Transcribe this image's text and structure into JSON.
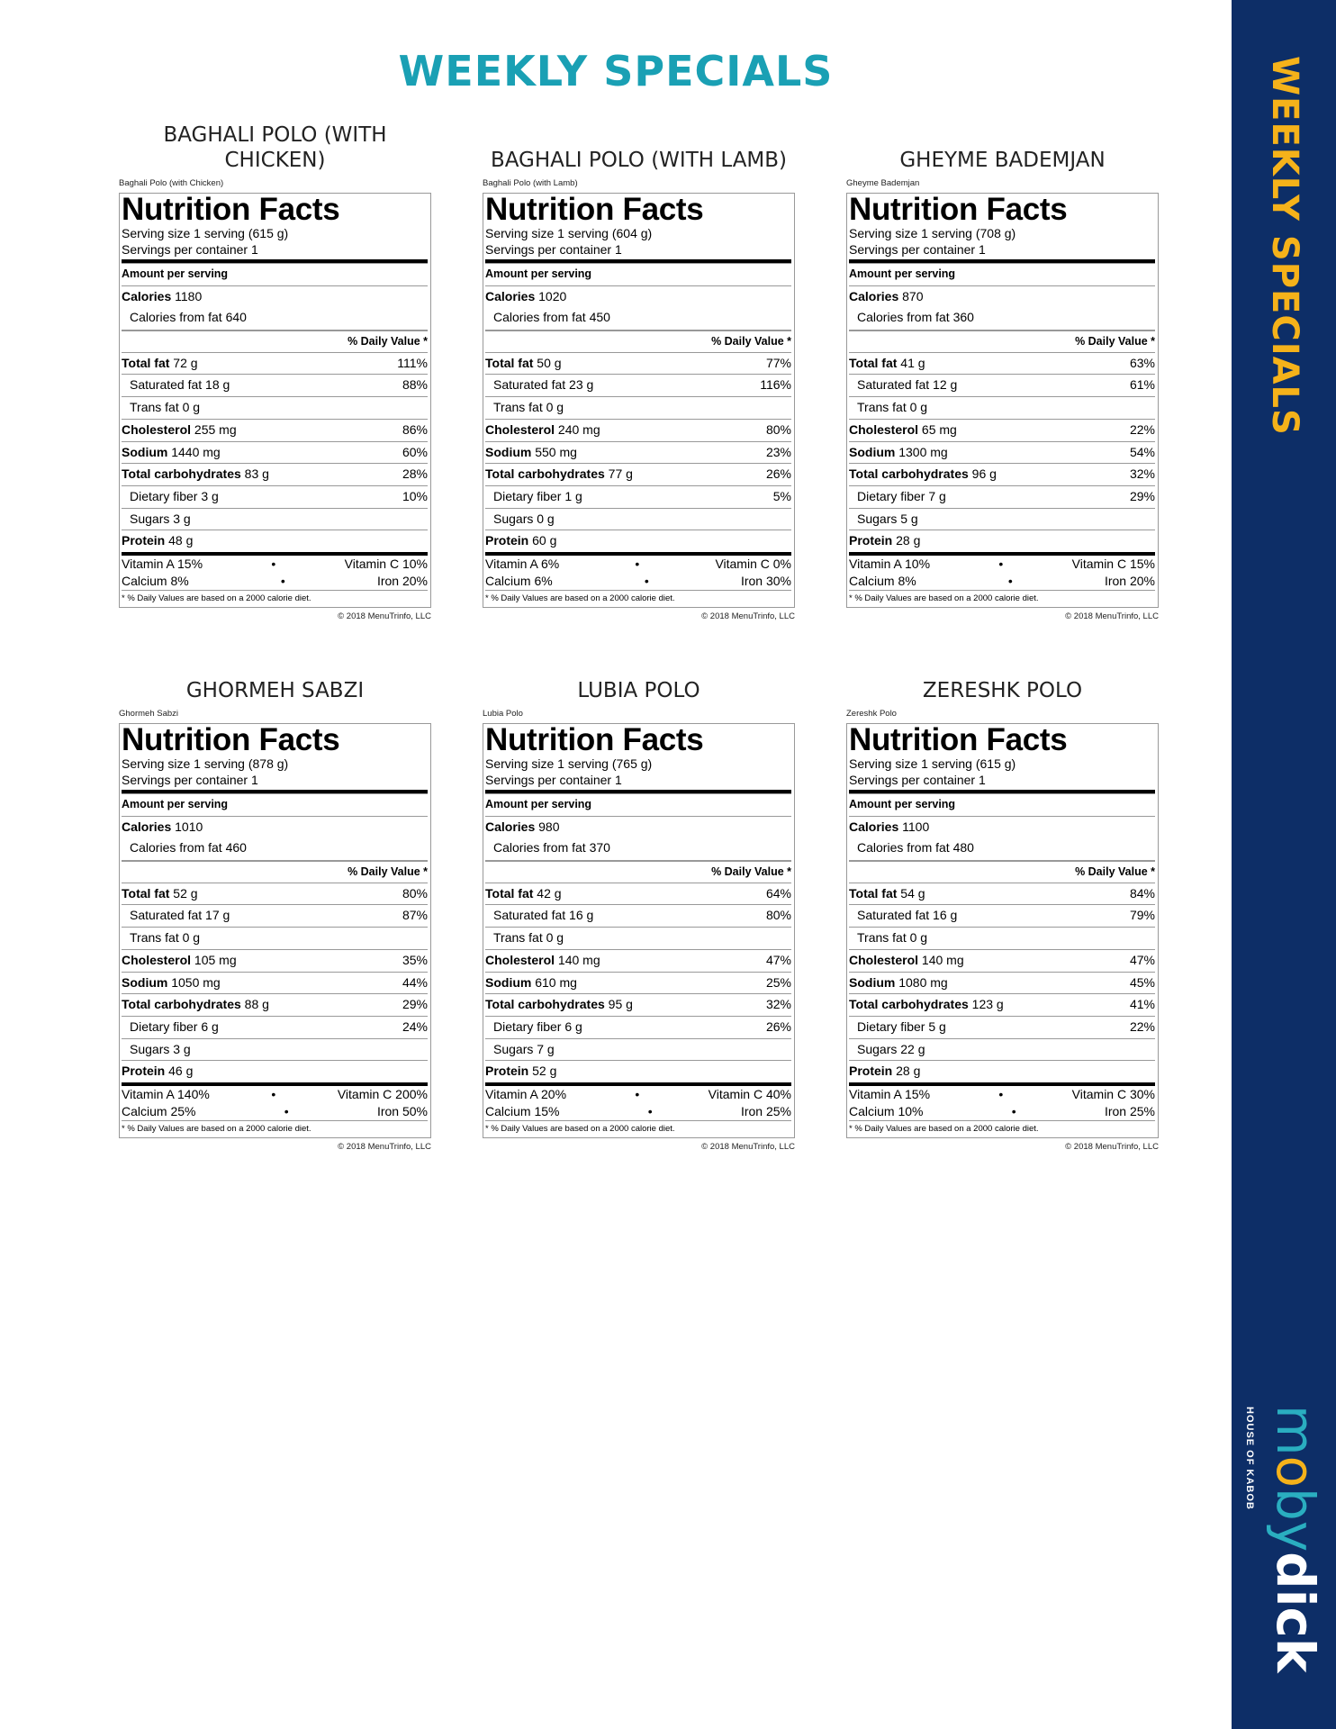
{
  "header": {
    "title": "WEEKLY SPECIALS"
  },
  "sidebar": {
    "title": "WEEKLY SPECIALS",
    "logo_text": "mobydick",
    "logo_tagline": "HOUSE OF KABOB",
    "colors": {
      "background": "#0d2e67",
      "accent": "#f5b21a",
      "teal": "#2aaec0"
    }
  },
  "common": {
    "nf": "Nutrition Facts",
    "spc": "Servings per container 1",
    "aps": "Amount per serving",
    "dv": "% Daily Value *",
    "footnote": "* % Daily Values are based on a 2000 calorie diet.",
    "copyright": "© 2018 MenuTrinfo, LLC",
    "bullet": "•"
  },
  "items": [
    {
      "heading": "BAGHALI POLO (WITH CHICKEN)",
      "small_name": "Baghali Polo (with Chicken)",
      "serving": "Serving size 1 serving (615 g)",
      "calories": "1180",
      "cal_fat": "Calories from fat 640",
      "fat": "72 g",
      "fat_dv": "111%",
      "sat": "Saturated fat 18 g",
      "sat_dv": "88%",
      "trans": "Trans fat 0 g",
      "chol": "255 mg",
      "chol_dv": "86%",
      "sod": "1440 mg",
      "sod_dv": "60%",
      "carb": "83 g",
      "carb_dv": "28%",
      "fiber": "Dietary fiber 3 g",
      "fiber_dv": "10%",
      "sugar": "Sugars 3 g",
      "protein": "48 g",
      "vit_a": "Vitamin A 15%",
      "vit_c": "Vitamin C 10%",
      "calcium": "Calcium 8%",
      "iron": "Iron 20%"
    },
    {
      "heading": "BAGHALI POLO (WITH LAMB)",
      "small_name": "Baghali Polo (with Lamb)",
      "serving": "Serving size 1 serving (604 g)",
      "calories": "1020",
      "cal_fat": "Calories from fat 450",
      "fat": "50 g",
      "fat_dv": "77%",
      "sat": "Saturated fat 23 g",
      "sat_dv": "116%",
      "trans": "Trans fat 0 g",
      "chol": "240 mg",
      "chol_dv": "80%",
      "sod": "550 mg",
      "sod_dv": "23%",
      "carb": "77 g",
      "carb_dv": "26%",
      "fiber": "Dietary fiber 1 g",
      "fiber_dv": "5%",
      "sugar": "Sugars 0 g",
      "protein": "60 g",
      "vit_a": "Vitamin A 6%",
      "vit_c": "Vitamin C 0%",
      "calcium": "Calcium 6%",
      "iron": "Iron 30%"
    },
    {
      "heading": "GHEYME BADEMJAN",
      "small_name": "Gheyme Bademjan",
      "serving": "Serving size 1 serving (708 g)",
      "calories": "870",
      "cal_fat": "Calories from fat 360",
      "fat": "41 g",
      "fat_dv": "63%",
      "sat": "Saturated fat 12 g",
      "sat_dv": "61%",
      "trans": "Trans fat 0 g",
      "chol": "65 mg",
      "chol_dv": "22%",
      "sod": "1300 mg",
      "sod_dv": "54%",
      "carb": "96 g",
      "carb_dv": "32%",
      "fiber": "Dietary fiber 7 g",
      "fiber_dv": "29%",
      "sugar": "Sugars 5 g",
      "protein": "28 g",
      "vit_a": "Vitamin A 10%",
      "vit_c": "Vitamin C 15%",
      "calcium": "Calcium 8%",
      "iron": "Iron 20%"
    },
    {
      "heading": "GHORMEH SABZI",
      "small_name": "Ghormeh Sabzi",
      "serving": "Serving size 1 serving (878 g)",
      "calories": "1010",
      "cal_fat": "Calories from fat 460",
      "fat": "52 g",
      "fat_dv": "80%",
      "sat": "Saturated fat 17 g",
      "sat_dv": "87%",
      "trans": "Trans fat 0 g",
      "chol": "105 mg",
      "chol_dv": "35%",
      "sod": "1050 mg",
      "sod_dv": "44%",
      "carb": "88 g",
      "carb_dv": "29%",
      "fiber": "Dietary fiber 6 g",
      "fiber_dv": "24%",
      "sugar": "Sugars 3 g",
      "protein": "46 g",
      "vit_a": "Vitamin A 140%",
      "vit_c": "Vitamin C 200%",
      "calcium": "Calcium 25%",
      "iron": "Iron 50%"
    },
    {
      "heading": "LUBIA POLO",
      "small_name": "Lubia Polo",
      "serving": "Serving size 1 serving (765 g)",
      "calories": "980",
      "cal_fat": "Calories from fat 370",
      "fat": "42 g",
      "fat_dv": "64%",
      "sat": "Saturated fat 16 g",
      "sat_dv": "80%",
      "trans": "Trans fat 0 g",
      "chol": "140 mg",
      "chol_dv": "47%",
      "sod": "610 mg",
      "sod_dv": "25%",
      "carb": "95 g",
      "carb_dv": "32%",
      "fiber": "Dietary fiber 6 g",
      "fiber_dv": "26%",
      "sugar": "Sugars 7 g",
      "protein": "52 g",
      "vit_a": "Vitamin A 20%",
      "vit_c": "Vitamin C 40%",
      "calcium": "Calcium 15%",
      "iron": "Iron 25%"
    },
    {
      "heading": "ZERESHK POLO",
      "small_name": "Zereshk Polo",
      "serving": "Serving size 1 serving (615 g)",
      "calories": "1100",
      "cal_fat": "Calories from fat 480",
      "fat": "54 g",
      "fat_dv": "84%",
      "sat": "Saturated fat 16 g",
      "sat_dv": "79%",
      "trans": "Trans fat 0 g",
      "chol": "140 mg",
      "chol_dv": "47%",
      "sod": "1080 mg",
      "sod_dv": "45%",
      "carb": "123 g",
      "carb_dv": "41%",
      "fiber": "Dietary fiber 5 g",
      "fiber_dv": "22%",
      "sugar": "Sugars 22 g",
      "protein": "28 g",
      "vit_a": "Vitamin A 15%",
      "vit_c": "Vitamin C 30%",
      "calcium": "Calcium 10%",
      "iron": "Iron 25%"
    }
  ],
  "labels": {
    "calories": "Calories",
    "fat": "Total fat",
    "chol": "Cholesterol",
    "sod": "Sodium",
    "carb": "Total carbohydrates",
    "protein": "Protein"
  }
}
